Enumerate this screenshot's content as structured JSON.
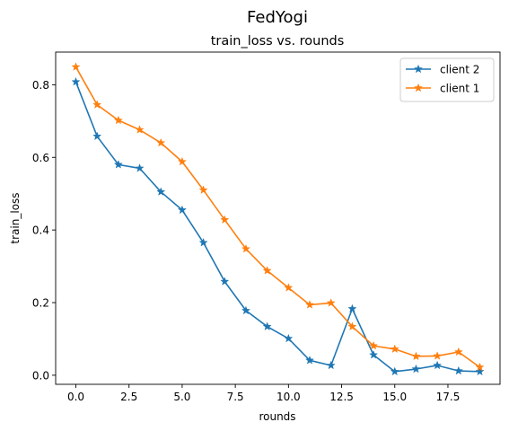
{
  "chart_data": {
    "type": "line",
    "suptitle": "FedYogi",
    "title": "train_loss vs. rounds",
    "xlabel": "rounds",
    "ylabel": "train_loss",
    "xlim": [
      -0.95,
      19.95
    ],
    "ylim": [
      -0.025,
      0.89
    ],
    "xticks": [
      0.0,
      2.5,
      5.0,
      7.5,
      10.0,
      12.5,
      15.0,
      17.5
    ],
    "xtick_labels": [
      "0.0",
      "2.5",
      "5.0",
      "7.5",
      "10.0",
      "12.5",
      "15.0",
      "17.5"
    ],
    "yticks": [
      0.0,
      0.2,
      0.4,
      0.6,
      0.8
    ],
    "ytick_labels": [
      "0.0",
      "0.2",
      "0.4",
      "0.6",
      "0.8"
    ],
    "grid": false,
    "legend_position": "top-right",
    "x": [
      0,
      1,
      2,
      3,
      4,
      5,
      6,
      7,
      8,
      9,
      10,
      11,
      12,
      13,
      14,
      15,
      16,
      17,
      18,
      19
    ],
    "series": [
      {
        "name": "client 2",
        "color": "#1f77b4",
        "marker": "star",
        "values": [
          0.808,
          0.658,
          0.58,
          0.57,
          0.505,
          0.455,
          0.365,
          0.258,
          0.178,
          0.134,
          0.101,
          0.041,
          0.027,
          0.183,
          0.056,
          0.01,
          0.017,
          0.027,
          0.012,
          0.01
        ]
      },
      {
        "name": "client 1",
        "color": "#ff7f0e",
        "marker": "star",
        "values": [
          0.849,
          0.745,
          0.702,
          0.676,
          0.64,
          0.588,
          0.51,
          0.428,
          0.348,
          0.288,
          0.241,
          0.194,
          0.199,
          0.134,
          0.081,
          0.072,
          0.052,
          0.053,
          0.064,
          0.022
        ]
      }
    ]
  }
}
